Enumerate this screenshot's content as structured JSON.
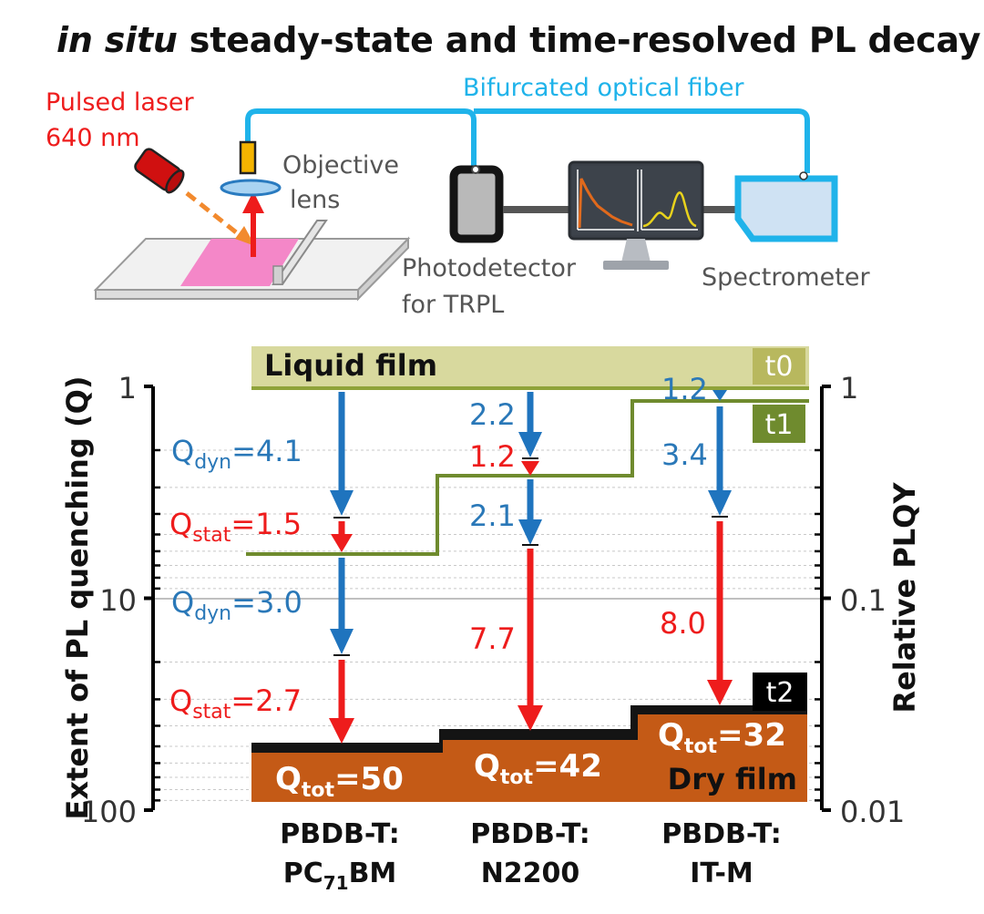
{
  "title": {
    "italic": "in situ",
    "rest": " steady-state and time-resolved PL decay"
  },
  "setup": {
    "laser_line1": "Pulsed laser",
    "laser_line2": "640 nm",
    "fiber": "Bifurcated optical fiber",
    "objective_line1": "Objective",
    "objective_line2": "lens",
    "detector_line1": "Photodetector",
    "detector_line2": "for TRPL",
    "spectrometer": "Spectrometer"
  },
  "chart": {
    "left_axis_label": "Extent of PL quenching (Q)",
    "right_axis_label": "Relative PLQY",
    "left_ticks": [
      "1",
      "10",
      "100"
    ],
    "right_ticks": [
      "1",
      "0.1",
      "0.01"
    ],
    "liquid_film": "Liquid film",
    "dry_film": "Dry film",
    "t0": "t0",
    "t1": "t1",
    "t2": "t2",
    "samples": [
      {
        "line1": "PBDB-T:",
        "line2_pre": "PC",
        "line2_sub": "71",
        "line2_post": "BM"
      },
      {
        "line1": "PBDB-T:",
        "line2_pre": "N2200",
        "line2_sub": "",
        "line2_post": ""
      },
      {
        "line1": "PBDB-T:",
        "line2_pre": "IT-M",
        "line2_sub": "",
        "line2_post": ""
      }
    ],
    "q_dyn_sub": "dyn",
    "q_stat_sub": "stat",
    "q_tot_sub": "tot",
    "col1": {
      "qdyn1": "=4.1",
      "qstat1": "=1.5",
      "qdyn2": "=3.0",
      "qstat2": "=2.7",
      "qtot": "=50"
    },
    "col2": {
      "a": "2.2",
      "b": "1.2",
      "c": "2.1",
      "d": "7.7",
      "qtot": "=42"
    },
    "col3": {
      "a": "1.2",
      "b": "3.4",
      "c": "8.0",
      "qtot": "=32"
    }
  },
  "chart_data": {
    "type": "diagram",
    "scale": "log",
    "left_axis": {
      "label": "Extent of PL quenching (Q)",
      "range": [
        1,
        100
      ],
      "ticks": [
        "1",
        "10",
        "100"
      ]
    },
    "right_axis": {
      "label": "Relative PLQY",
      "range": [
        1,
        0.01
      ],
      "ticks": [
        "1",
        "0.1",
        "0.01"
      ]
    },
    "samples": [
      {
        "name": "PBDB-T:PC71BM",
        "Q_dyn": [
          4.1,
          3.0
        ],
        "Q_stat": [
          1.5,
          2.7
        ],
        "Q_tot": 50
      },
      {
        "name": "PBDB-T:N2200",
        "Q_dyn": [
          2.2,
          2.1
        ],
        "Q_stat": [
          1.2,
          7.7
        ],
        "Q_tot": 42
      },
      {
        "name": "PBDB-T:IT-M",
        "Q_dyn": [
          1.2,
          3.4
        ],
        "Q_stat": [
          8.0
        ],
        "Q_tot": 32
      }
    ]
  },
  "colors": {
    "liquid": "#d8d99e",
    "liquid_edge": "#8fa33a",
    "t1": "#6f8b2e",
    "dry": "#c45a16",
    "blue": "#1f74be",
    "red": "#ee1c1c",
    "fiber": "#1fb3ea"
  }
}
